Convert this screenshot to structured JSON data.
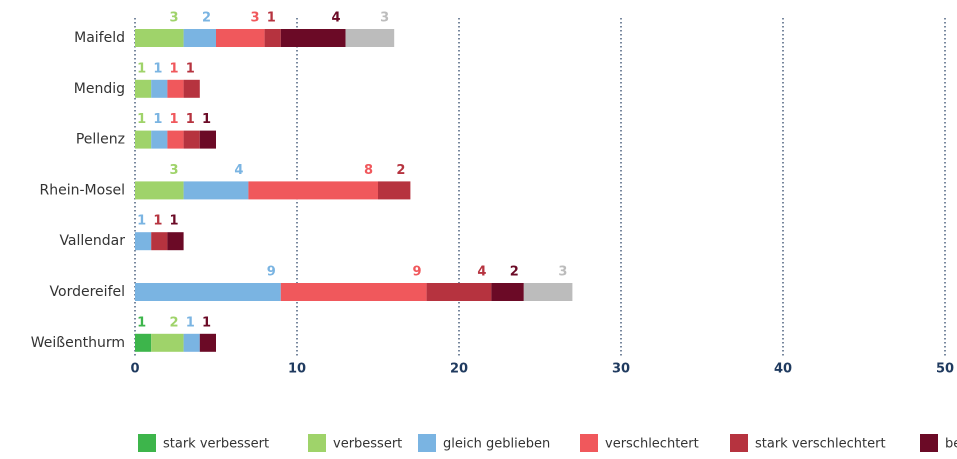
{
  "chart_data": {
    "type": "stacked-bar-horizontal",
    "categories": [
      "Maifeld",
      "Mendig",
      "Pellenz",
      "Rhein-Mosel",
      "Vallendar",
      "Vordereifel",
      "Weißenthurm"
    ],
    "series": [
      {
        "name": "stark verbessert",
        "color": "#3db54b",
        "values": [
          0,
          0,
          0,
          0,
          0,
          0,
          1
        ]
      },
      {
        "name": "verbessert",
        "color": "#9fd36a",
        "values": [
          3,
          1,
          1,
          3,
          0,
          0,
          2
        ]
      },
      {
        "name": "gleich geblieben",
        "color": "#7ab4e2",
        "values": [
          2,
          1,
          1,
          4,
          1,
          9,
          1
        ]
      },
      {
        "name": "verschlechtert",
        "color": "#f0585c",
        "values": [
          3,
          1,
          1,
          8,
          0,
          9,
          0
        ]
      },
      {
        "name": "stark verschlechtert",
        "color": "#b6333f",
        "values": [
          1,
          1,
          1,
          2,
          1,
          4,
          0
        ]
      },
      {
        "name": "be",
        "color": "#6b0a26",
        "values": [
          4,
          0,
          1,
          0,
          1,
          2,
          1
        ]
      },
      {
        "color": "#bcbcbc",
        "values": [
          3,
          0,
          0,
          0,
          0,
          3,
          0
        ]
      }
    ],
    "xlim": [
      0,
      50
    ],
    "xticks": [
      0,
      10,
      20,
      30,
      40,
      50
    ],
    "grid": true
  }
}
